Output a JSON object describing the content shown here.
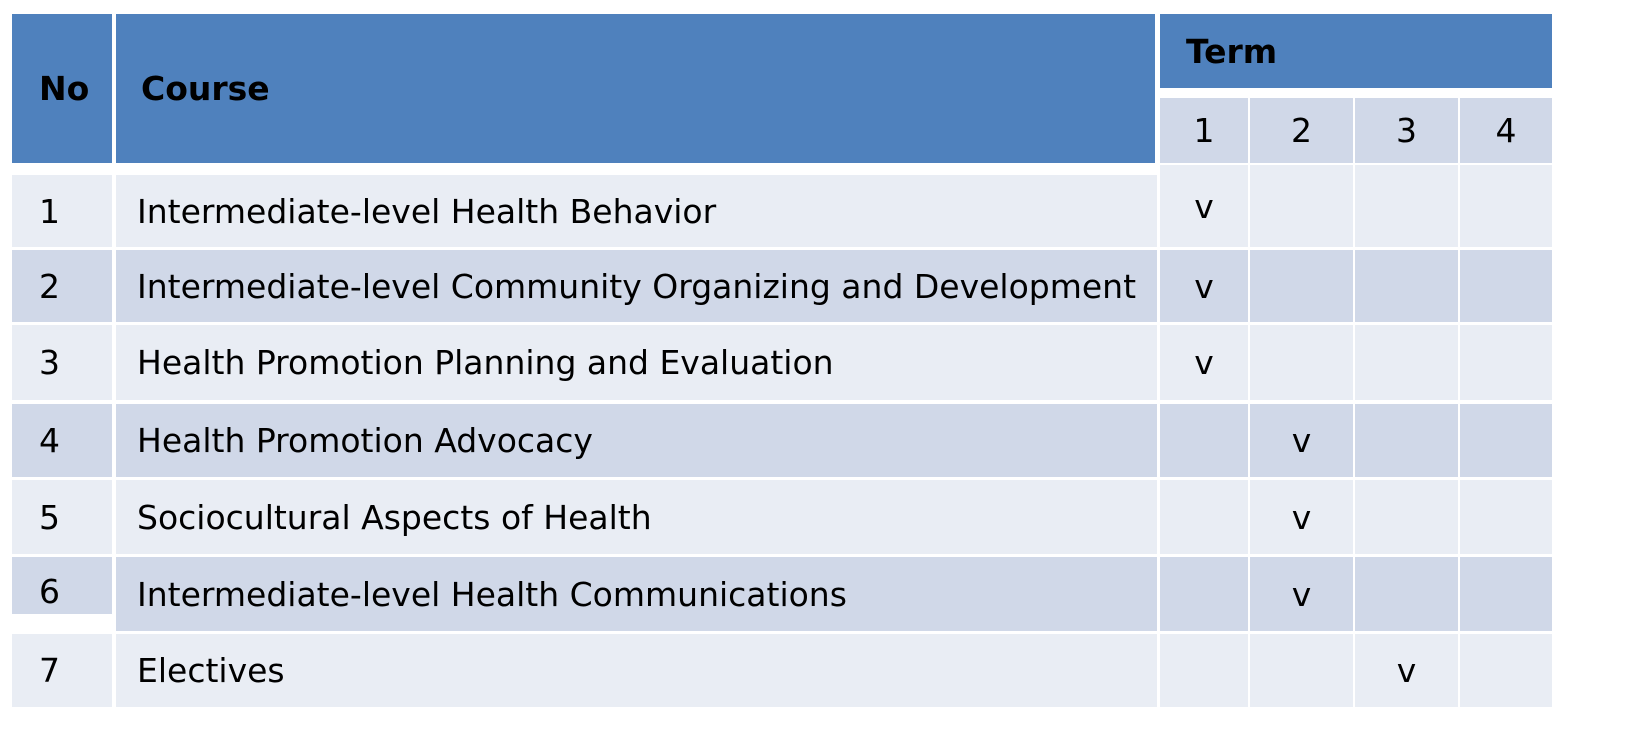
{
  "table": {
    "headers": {
      "no": "No",
      "course": "Course",
      "term": "Term"
    },
    "terms": [
      "1",
      "2",
      "3",
      "4"
    ],
    "rows": [
      {
        "no": "1",
        "course": "Intermediate-level Health Behavior",
        "marks": [
          "v",
          "",
          "",
          ""
        ]
      },
      {
        "no": "2",
        "course": "Intermediate-level Community Organizing and Development",
        "marks": [
          "v",
          "",
          "",
          ""
        ]
      },
      {
        "no": "3",
        "course": "Health Promotion Planning and Evaluation",
        "marks": [
          "v",
          "",
          "",
          ""
        ]
      },
      {
        "no": "4",
        "course": "Health Promotion Advocacy",
        "marks": [
          "",
          "v",
          "",
          ""
        ]
      },
      {
        "no": "5",
        "course": "Sociocultural Aspects of Health",
        "marks": [
          "",
          "v",
          "",
          ""
        ]
      },
      {
        "no": "6",
        "course": "Intermediate-level Health Communications",
        "marks": [
          "",
          "v",
          "",
          ""
        ]
      },
      {
        "no": "7",
        "course": "Electives",
        "marks": [
          "",
          "",
          "v",
          ""
        ]
      }
    ]
  },
  "colors": {
    "header": "#4f81bd",
    "row_light": "#e9edf4",
    "row_dark": "#d0d8e8"
  }
}
